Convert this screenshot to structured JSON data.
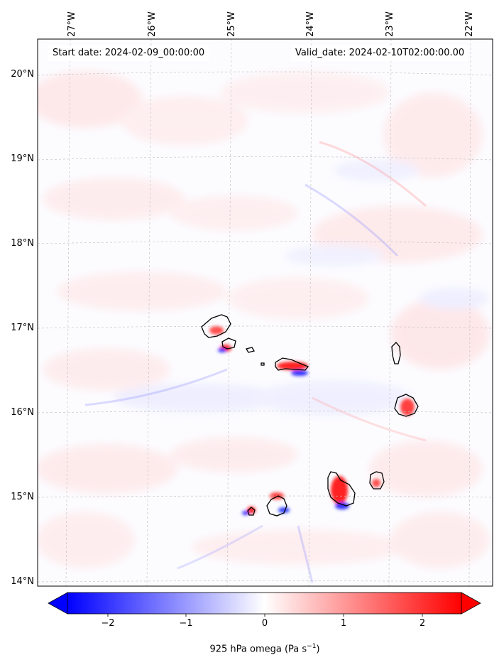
{
  "header": {
    "start_date": "Start date: 2024-02-09_00:00:00",
    "valid_date": "Valid_date: 2024-02-10T02:00:00.00"
  },
  "map": {
    "lon_ticks": [
      "27°W",
      "26°W",
      "25°W",
      "24°W",
      "23°W",
      "22°W"
    ],
    "lat_ticks": [
      "20°N",
      "19°N",
      "18°N",
      "17°N",
      "16°N",
      "15°N",
      "14°N"
    ],
    "gridlines": true,
    "colormap": "bwr",
    "extend": "both"
  },
  "colorbar": {
    "ticks": [
      "−2",
      "−1",
      "0",
      "1",
      "2"
    ],
    "label_prefix": "925 hPa omega (Pa s",
    "label_exp": "−1",
    "label_suffix": ")",
    "min_color": "#0000ff",
    "mid_color": "#ffffff",
    "max_color": "#ff0000"
  }
}
